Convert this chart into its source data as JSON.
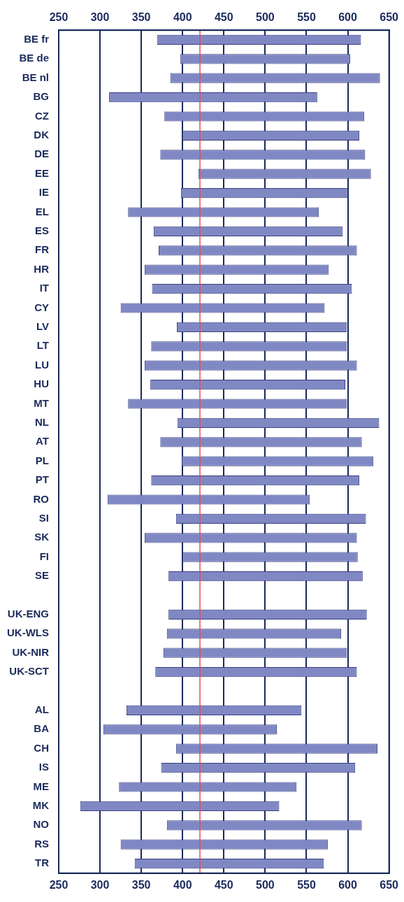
{
  "chart_data": {
    "type": "bar",
    "orientation": "horizontal",
    "categories": [
      "BE fr",
      "BE de",
      "BE nl",
      "BG",
      "CZ",
      "DK",
      "DE",
      "EE",
      "IE",
      "EL",
      "ES",
      "FR",
      "HR",
      "IT",
      "CY",
      "LV",
      "LT",
      "LU",
      "HU",
      "MT",
      "NL",
      "AT",
      "PL",
      "PT",
      "RO",
      "SI",
      "SK",
      "FI",
      "SE",
      null,
      "UK-ENG",
      "UK-WLS",
      "UK-NIR",
      "UK-SCT",
      null,
      "AL",
      "BA",
      "CH",
      "IS",
      "ME",
      "MK",
      "NO",
      "RS",
      "TR"
    ],
    "base": [
      369,
      397,
      385,
      311,
      378,
      400,
      373,
      419,
      398,
      334,
      365,
      371,
      354,
      363,
      325,
      393,
      362,
      354,
      361,
      334,
      394,
      373,
      399,
      362,
      309,
      392,
      354,
      400,
      383,
      null,
      383,
      381,
      377,
      367,
      null,
      332,
      304,
      392,
      374,
      323,
      276,
      381,
      325,
      342
    ],
    "values": [
      247,
      206,
      254,
      252,
      242,
      214,
      248,
      209,
      202,
      231,
      229,
      240,
      223,
      242,
      247,
      206,
      237,
      257,
      236,
      265,
      244,
      244,
      232,
      252,
      245,
      230,
      257,
      212,
      235,
      null,
      240,
      211,
      222,
      244,
      null,
      212,
      210,
      244,
      235,
      215,
      241,
      236,
      251,
      229
    ],
    "color": "#8088c4",
    "xlim": [
      250,
      650
    ],
    "xticks": [
      250,
      300,
      350,
      400,
      450,
      500,
      550,
      600,
      650
    ],
    "x2lim": [
      250,
      650
    ],
    "x2ticks": [
      250,
      300,
      350,
      400,
      450,
      500,
      550,
      600,
      650
    ],
    "grid": "x",
    "ref_lines": [
      {
        "axis": "x",
        "value": 421,
        "color": "#e05050"
      }
    ]
  }
}
